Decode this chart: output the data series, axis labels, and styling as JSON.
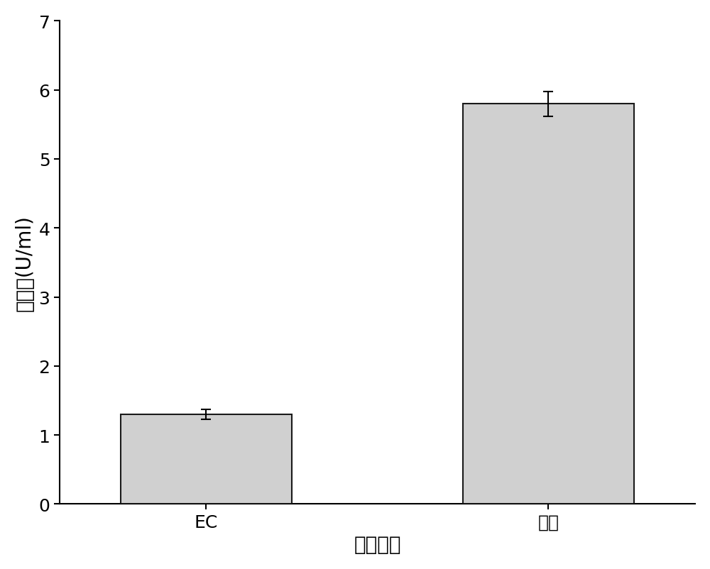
{
  "categories": [
    "EC",
    "尿素"
  ],
  "values": [
    1.3,
    5.8
  ],
  "errors": [
    0.07,
    0.18
  ],
  "bar_color": "#d0d0d0",
  "bar_edgecolor": "#1a1a1a",
  "bar_width": 0.35,
  "ylabel": "醂活力(U/ml)",
  "xlabel": "底物种类",
  "ylim": [
    0,
    7
  ],
  "yticks": [
    0,
    1,
    2,
    3,
    4,
    5,
    6,
    7
  ],
  "ylabel_fontsize": 20,
  "xlabel_fontsize": 20,
  "tick_fontsize": 18,
  "background_color": "#ffffff",
  "errorbar_color": "black",
  "errorbar_capsize": 5,
  "errorbar_linewidth": 1.5,
  "x_positions": [
    0.3,
    1.0
  ],
  "xlim": [
    0.0,
    1.3
  ]
}
